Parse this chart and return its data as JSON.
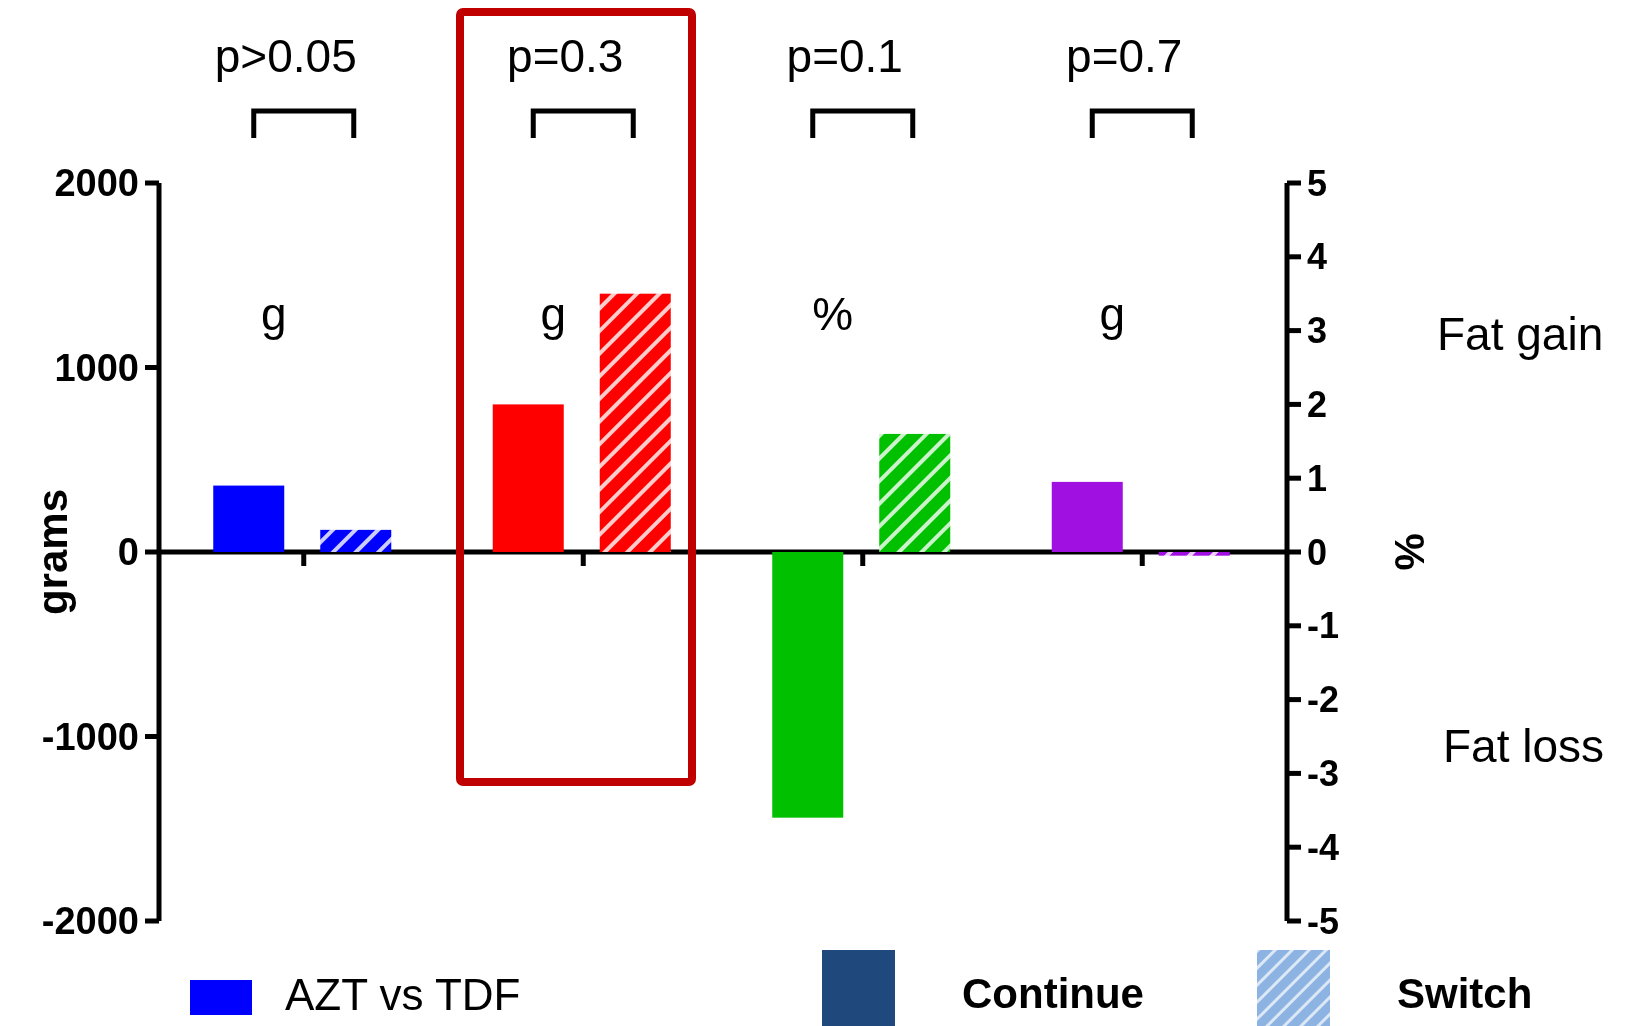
{
  "chart_data": {
    "type": "bar",
    "ylabel": "grams",
    "y2label": "%",
    "categories": [
      null,
      null,
      null,
      null
    ],
    "series": [
      {
        "colors": [
          "#0000ff",
          "#ff0000",
          null,
          "#a010e0"
        ],
        "values": [
          360,
          800,
          null,
          380
        ]
      },
      {
        "colors": [
          "#0000ff",
          "#ff0000",
          null,
          "#a010e0"
        ],
        "values": [
          120,
          1400,
          null,
          -20
        ]
      },
      {
        "axis": "y2",
        "colors": [
          null,
          null,
          "#00c000",
          null
        ],
        "values": [
          null,
          null,
          -3.6,
          null
        ]
      },
      {
        "axis": "y2",
        "colors": [
          null,
          null,
          "#00c000",
          null
        ],
        "values": [
          null,
          null,
          1.6,
          null
        ]
      }
    ],
    "ylim": [
      -2000,
      2000
    ],
    "yticks": [
      -2000,
      -1000,
      0,
      1000,
      2000
    ],
    "y2lim": [
      -5,
      5
    ],
    "y2ticks": [
      -5,
      -4,
      -3,
      -2,
      -1,
      0,
      1,
      2,
      3,
      4,
      5
    ],
    "annotations": [
      "p>0.05",
      "p=0.3",
      "p=0.1",
      "p=0.7",
      "g",
      "g",
      "%",
      "g",
      "Fat gain",
      "Fat loss",
      "AZT vs TDF",
      "Continue",
      "Switch"
    ]
  }
}
